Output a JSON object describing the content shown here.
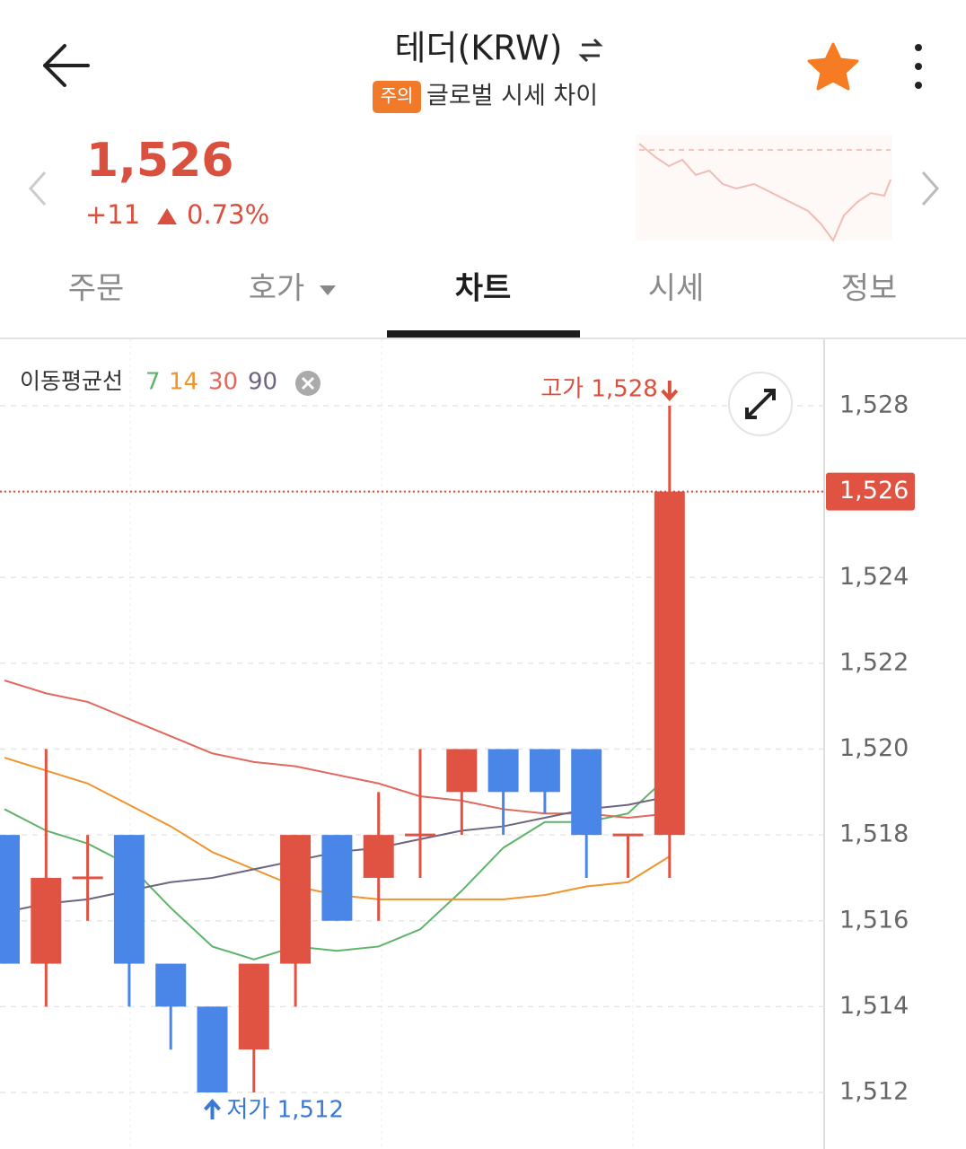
{
  "header": {
    "title": "테더(KRW)",
    "badge": "주의",
    "subtitle": "글로벌 시세 차이"
  },
  "price": {
    "value": "1,526",
    "change": "+11",
    "rate": "0.73%"
  },
  "tabs": [
    "주문",
    "호가",
    "차트",
    "시세",
    "정보"
  ],
  "chart_data": {
    "type": "candlestick",
    "legend_title": "이동평균선",
    "up_color": "#e05242",
    "down_color": "#4a86e8",
    "candles": [
      {
        "open": 1518,
        "high": 1518,
        "low": 1515,
        "close": 1515
      },
      {
        "open": 1515,
        "high": 1520,
        "low": 1514,
        "close": 1517
      },
      {
        "open": 1517,
        "high": 1518,
        "low": 1516,
        "close": 1517
      },
      {
        "open": 1518,
        "high": 1518,
        "low": 1514,
        "close": 1515
      },
      {
        "open": 1515,
        "high": 1515,
        "low": 1513,
        "close": 1514
      },
      {
        "open": 1514,
        "high": 1514,
        "low": 1512,
        "close": 1512
      },
      {
        "open": 1513,
        "high": 1515,
        "low": 1512,
        "close": 1515
      },
      {
        "open": 1515,
        "high": 1518,
        "low": 1514,
        "close": 1518
      },
      {
        "open": 1518,
        "high": 1518,
        "low": 1516,
        "close": 1516
      },
      {
        "open": 1517,
        "high": 1519,
        "low": 1516,
        "close": 1518
      },
      {
        "open": 1518,
        "high": 1520,
        "low": 1517,
        "close": 1518
      },
      {
        "open": 1519,
        "high": 1520,
        "low": 1518,
        "close": 1520
      },
      {
        "open": 1520,
        "high": 1520,
        "low": 1518,
        "close": 1519
      },
      {
        "open": 1520,
        "high": 1520,
        "low": 1518.5,
        "close": 1519
      },
      {
        "open": 1520,
        "high": 1520,
        "low": 1517,
        "close": 1518
      },
      {
        "open": 1518,
        "high": 1518,
        "low": 1517,
        "close": 1518
      },
      {
        "open": 1518,
        "high": 1528,
        "low": 1517,
        "close": 1526
      }
    ],
    "series": [
      {
        "name": "7",
        "color": "#5fb36a",
        "values": [
          1518.6,
          1518.1,
          1517.8,
          1517.3,
          1516.3,
          1515.4,
          1515.1,
          1515.4,
          1515.3,
          1515.4,
          1515.8,
          1516.7,
          1517.7,
          1518.3,
          1518.3,
          1518.5,
          1519.4
        ]
      },
      {
        "name": "14",
        "color": "#f0932b",
        "values": [
          1519.8,
          1519.5,
          1519.2,
          1518.7,
          1518.2,
          1517.6,
          1517.2,
          1516.8,
          1516.6,
          1516.5,
          1516.5,
          1516.5,
          1516.5,
          1516.6,
          1516.8,
          1516.9,
          1517.5
        ]
      },
      {
        "name": "30",
        "color": "#e0685c",
        "values": [
          1521.6,
          1521.3,
          1521.1,
          1520.7,
          1520.3,
          1519.9,
          1519.7,
          1519.6,
          1519.4,
          1519.2,
          1518.9,
          1518.8,
          1518.6,
          1518.5,
          1518.5,
          1518.4,
          1518.5
        ]
      },
      {
        "name": "90",
        "color": "#6e6480",
        "values": [
          1516.2,
          1516.4,
          1516.5,
          1516.7,
          1516.9,
          1517.0,
          1517.2,
          1517.4,
          1517.6,
          1517.7,
          1517.9,
          1518.1,
          1518.2,
          1518.4,
          1518.6,
          1518.7,
          1518.9
        ]
      }
    ],
    "ylim": [
      1511.4,
      1529.6
    ],
    "yticks": [
      {
        "value": 1512,
        "label": "1,512"
      },
      {
        "value": 1514,
        "label": "1,514"
      },
      {
        "value": 1516,
        "label": "1,516"
      },
      {
        "value": 1518,
        "label": "1,518"
      },
      {
        "value": 1520,
        "label": "1,520"
      },
      {
        "value": 1522,
        "label": "1,522"
      },
      {
        "value": 1524,
        "label": "1,524"
      },
      {
        "value": 1526,
        "label": "1,526"
      },
      {
        "value": 1528,
        "label": "1,528"
      }
    ],
    "current": {
      "value": 1526,
      "label": "1,526"
    },
    "annotations": [
      {
        "text": "고가 1,528",
        "value": 1528
      },
      {
        "text": "저가 1,512",
        "value": 1512
      }
    ],
    "grid": true
  }
}
